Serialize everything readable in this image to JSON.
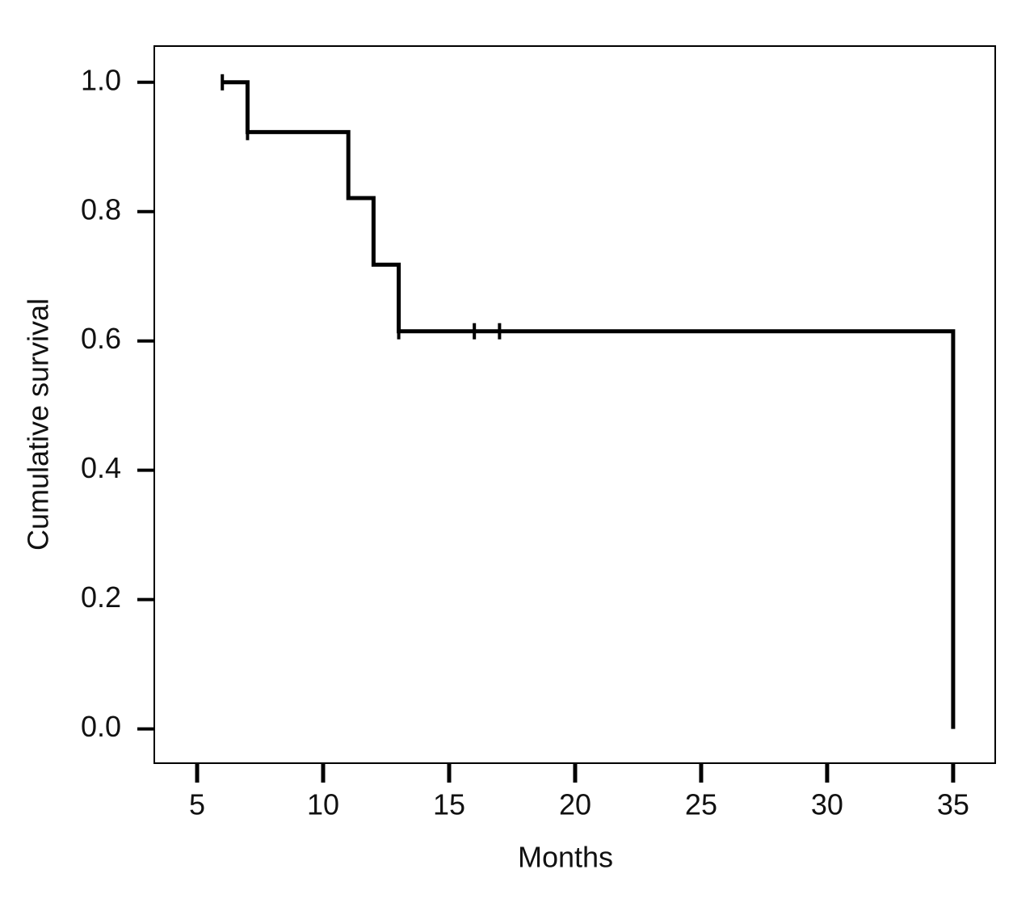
{
  "chart_data": {
    "type": "step",
    "x_label": "Months",
    "y_label": "Cumulative survival",
    "x": [
      6,
      7,
      11,
      12,
      13,
      35
    ],
    "values": [
      1.0,
      0.923,
      0.821,
      0.718,
      0.615,
      0
    ],
    "censored_x": [
      6,
      7,
      13,
      16,
      17
    ],
    "censored_values": [
      1.0,
      0.923,
      0.615,
      0.615,
      0.615
    ],
    "color": "#000000",
    "xlim": [
      3.3,
      36.67
    ],
    "ylim": [
      -0.053,
      1.056
    ],
    "xticks": [
      5,
      10,
      15,
      20,
      25,
      30,
      35
    ],
    "yticks": [
      {
        "value": 0,
        "label": "0.0"
      },
      0.2,
      0.4,
      0.6,
      0.8,
      {
        "value": 1,
        "label": "1.0"
      }
    ]
  }
}
